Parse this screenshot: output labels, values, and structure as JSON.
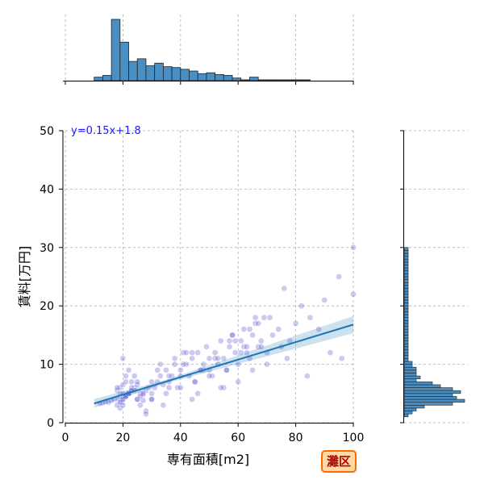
{
  "badge": "灘区",
  "chart_data": {
    "type": "scatter",
    "title": "",
    "xlabel": "専有面積[m2]",
    "ylabel": "賃料[万円]",
    "xlim": [
      0,
      100
    ],
    "ylim": [
      0,
      50
    ],
    "xticks": [
      0,
      20,
      40,
      60,
      80,
      100
    ],
    "yticks": [
      0,
      10,
      20,
      30,
      40,
      50
    ],
    "grid": true,
    "colors": {
      "points": "#4b3fcf",
      "regression": "#1f77b4",
      "hist": "#4a8fc4"
    },
    "regression": {
      "label": "y=0.15x+1.8",
      "slope": 0.15,
      "intercept": 1.8,
      "x_range": [
        10,
        100
      ]
    },
    "points": {
      "x": [
        18,
        19,
        20,
        21,
        22,
        18.5,
        19.5,
        20.5,
        17,
        16,
        15,
        14,
        13,
        12,
        21,
        22,
        23,
        24,
        25,
        26,
        27,
        28,
        29,
        30,
        24,
        25,
        26,
        27,
        19,
        20,
        21,
        22,
        23,
        18,
        19,
        20,
        31,
        32,
        33,
        34,
        35,
        36,
        37,
        38,
        39,
        40,
        41,
        42,
        43,
        44,
        45,
        46,
        47,
        48,
        49,
        50,
        51,
        52,
        53,
        54,
        55,
        56,
        57,
        58,
        59,
        60,
        61,
        62,
        63,
        64,
        65,
        66,
        67,
        68,
        69,
        70,
        72,
        74,
        75,
        76,
        78,
        80,
        82,
        85,
        88,
        90,
        95,
        96,
        100,
        30,
        35,
        40,
        45,
        50,
        55,
        60,
        65,
        70,
        33,
        38,
        42,
        48,
        52,
        58,
        62,
        28,
        34,
        44,
        46,
        54,
        20,
        21,
        22,
        23,
        24,
        25,
        26,
        27,
        18,
        19,
        20,
        21,
        22,
        23,
        30,
        32,
        36,
        41,
        47,
        53,
        57,
        63,
        67,
        71,
        77,
        84,
        92,
        100,
        56,
        59,
        61,
        64,
        66,
        68,
        20,
        25,
        30,
        36,
        40,
        44,
        50,
        28
      ],
      "y": [
        5.5,
        6,
        6.5,
        7,
        5,
        4,
        3.5,
        4.5,
        4,
        3.8,
        3.5,
        3.6,
        3.4,
        3.3,
        4.5,
        5,
        5.5,
        6,
        6.5,
        5,
        4.8,
        5.5,
        6,
        7,
        8,
        4,
        3,
        3.8,
        2.5,
        3,
        8,
        9,
        7,
        6,
        5,
        4,
        6,
        7,
        8,
        6.5,
        9,
        7,
        8,
        10,
        6,
        9,
        12,
        10,
        8,
        11,
        7,
        12,
        9,
        10,
        13,
        11,
        8,
        12,
        10,
        14,
        11,
        9,
        13,
        15,
        12,
        10,
        14,
        16,
        12,
        11,
        15,
        17,
        13,
        14,
        18,
        12,
        15,
        16,
        13,
        23,
        14,
        17,
        20,
        18,
        16,
        21,
        25,
        11,
        30,
        4,
        5,
        6,
        7,
        8,
        6,
        7,
        9,
        10,
        10,
        11,
        12,
        9,
        11,
        15,
        13,
        2,
        3,
        4,
        5,
        6,
        5,
        4.5,
        5,
        6,
        5.5,
        4,
        4.5,
        5,
        3,
        3.5,
        4,
        4.5,
        5,
        5.5,
        4,
        9,
        8,
        10,
        9,
        11,
        14,
        13,
        17,
        18,
        11,
        8,
        12,
        22,
        9,
        14,
        12,
        16,
        18,
        13,
        11,
        7,
        5,
        6,
        8,
        12,
        9,
        1.5
      ]
    },
    "hist_x": {
      "bin_width": 4,
      "bin_start": 10,
      "counts": [
        4,
        6,
        70,
        44,
        22,
        25,
        17,
        20,
        16,
        15,
        13,
        11,
        8,
        9,
        7,
        6,
        3,
        1,
        4,
        1,
        1,
        1,
        1,
        1,
        1
      ]
    },
    "hist_y": {
      "bin_width": 0.5,
      "bin_start": 1,
      "counts": [
        1,
        2,
        3,
        5,
        12,
        15,
        13,
        12,
        14,
        12,
        9,
        7,
        3,
        4,
        3,
        3,
        3,
        2,
        2,
        1,
        1,
        1,
        1,
        1,
        1,
        1,
        1,
        1,
        1,
        1,
        1,
        1,
        1,
        1,
        1,
        1,
        1,
        1,
        1,
        1,
        1,
        1,
        1,
        1,
        1,
        1,
        1,
        1,
        1,
        1,
        1,
        1,
        1,
        1,
        1,
        1,
        1,
        1,
        0,
        0,
        0,
        0,
        0,
        0,
        0,
        0,
        0,
        0,
        0,
        0,
        0,
        0,
        0,
        0,
        0,
        0,
        0,
        0,
        0,
        0,
        0,
        0,
        0,
        0,
        0,
        0,
        0,
        0,
        0,
        0,
        0,
        0,
        0,
        0,
        0,
        0,
        0,
        0,
        0,
        0
      ]
    }
  }
}
